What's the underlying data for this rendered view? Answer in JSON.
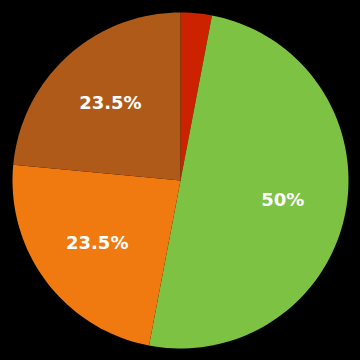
{
  "chart_data": {
    "type": "pie",
    "values": [
      3.0,
      50.0,
      23.5,
      23.5
    ],
    "value_labels": [
      null,
      "50%",
      "23.5%",
      "23.5%"
    ],
    "colors": [
      "#cc2200",
      "#7dc242",
      "#f07a10",
      "#b05a1a"
    ],
    "data_labels": true
  }
}
